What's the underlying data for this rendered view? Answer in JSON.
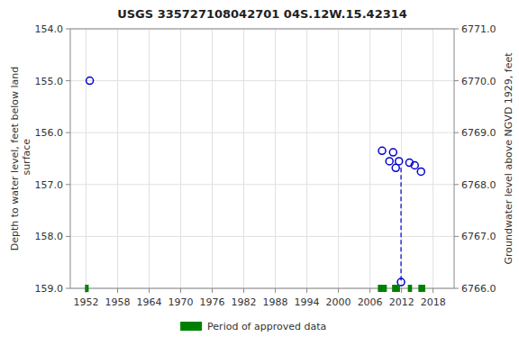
{
  "chart_data": {
    "type": "scatter",
    "title": "USGS 335727108042701 04S.12W.15.42314",
    "y_label": "Depth to water level, feet below land\n surface",
    "y2_label": "Groundwater level above NGVD 1929, feet",
    "xlim": [
      1949,
      2022
    ],
    "xticks": [
      1952,
      1958,
      1964,
      1970,
      1976,
      1982,
      1988,
      1994,
      2000,
      2006,
      2012,
      2018
    ],
    "ylim": [
      159.0,
      154.0
    ],
    "yticks": [
      {
        "value": 154.0,
        "label": "154.0"
      },
      {
        "value": 155.0,
        "label": "155.0"
      },
      {
        "value": 156.0,
        "label": "156.0"
      },
      {
        "value": 157.0,
        "label": "157.0"
      },
      {
        "value": 158.0,
        "label": "158.0"
      },
      {
        "value": 159.0,
        "label": "159.0"
      }
    ],
    "y2lim": [
      6766.0,
      6771.0
    ],
    "y2ticks": [
      {
        "value": 6771.0,
        "label": "6771.0"
      },
      {
        "value": 6770.0,
        "label": "6770.0"
      },
      {
        "value": 6769.0,
        "label": "6769.0"
      },
      {
        "value": 6768.0,
        "label": "6768.0"
      },
      {
        "value": 6767.0,
        "label": "6767.0"
      },
      {
        "value": 6766.0,
        "label": "6766.0"
      }
    ],
    "grid": true,
    "legend": "bottom",
    "series": [
      {
        "type": "scatter",
        "color": "#0000cc",
        "marker": "o",
        "x": [
          1952.7,
          2008.3,
          2009.7,
          2010.4,
          2010.9,
          2011.5,
          2011.9,
          2013.5,
          2014.5,
          2015.7
        ],
        "values": [
          155.0,
          156.35,
          156.55,
          156.38,
          156.68,
          156.55,
          158.88,
          156.58,
          156.63,
          156.75
        ]
      },
      {
        "type": "line",
        "color": "#0000cc",
        "line_style": "dashed",
        "x": [
          2011.9,
          2011.9
        ],
        "values": [
          156.68,
          158.88
        ]
      },
      {
        "type": "span",
        "name": "Period of approved data",
        "color": "#008000",
        "start": [
          1951.8,
          2007.5,
          2010.2,
          2013.2,
          2015.2
        ],
        "end": [
          1952.5,
          2009.2,
          2011.7,
          2014.0,
          2016.5
        ],
        "y": 159.0
      }
    ]
  }
}
